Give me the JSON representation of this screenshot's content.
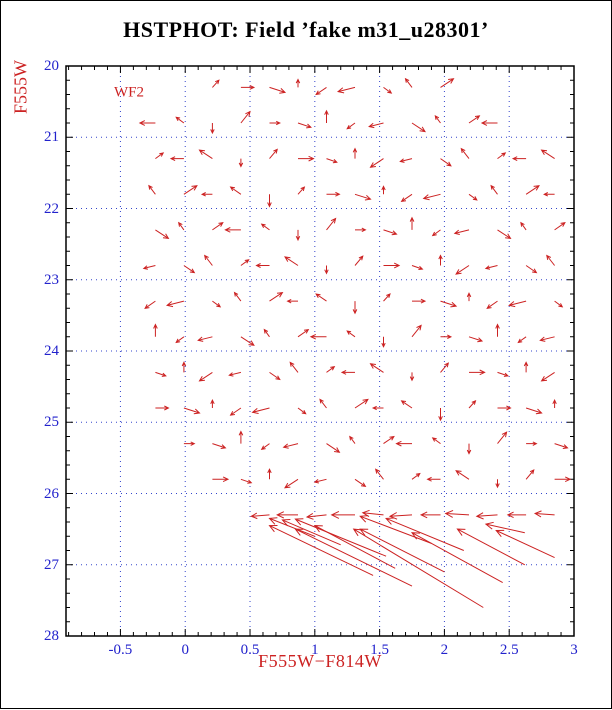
{
  "colors": {
    "red": "#cc2222",
    "blue": "#2222cc",
    "grid_blue": "#3344cc",
    "frame": "#000000"
  },
  "chart_data": {
    "type": "scatter",
    "subtype": "quiver-vector-field",
    "title": "HSTPHOT: Field ’fake m31_u28301’",
    "xlabel": "F555W−F814W",
    "ylabel": "F555W",
    "annotation": "WF2",
    "annotation_pos": {
      "x": -0.55,
      "y": 20.38
    },
    "xlim": [
      -0.92,
      3.0
    ],
    "ylim": [
      20,
      28
    ],
    "y_axis_inverted": true,
    "grid": "dotted at major ticks",
    "x_ticks": [
      -0.5,
      0,
      0.5,
      1,
      1.5,
      2,
      2.5,
      3
    ],
    "x_tick_labels": [
      "-0.5",
      "0",
      "0.5",
      "1",
      "1.5",
      "2",
      "2.5",
      "3"
    ],
    "y_ticks": [
      20,
      21,
      22,
      23,
      24,
      25,
      26,
      27,
      28
    ],
    "y_tick_labels": [
      "20",
      "21",
      "22",
      "23",
      "24",
      "25",
      "26",
      "27",
      "28"
    ],
    "x_minor_step": 0.1,
    "y_minor_step": 0.2,
    "vectors_format": [
      "x_color",
      "y_mag",
      "dx_color",
      "dy_mag"
    ],
    "vectors": [
      [
        0.21,
        20.3,
        0.05,
        -0.1
      ],
      [
        0.43,
        20.3,
        0.1,
        0
      ],
      [
        0.65,
        20.3,
        0.12,
        0.07
      ],
      [
        0.87,
        20.3,
        0,
        -0.11
      ],
      [
        1.09,
        20.3,
        -0.08,
        0.1
      ],
      [
        1.31,
        20.3,
        -0.13,
        0.06
      ],
      [
        1.53,
        20.3,
        0.06,
        0.08
      ],
      [
        1.75,
        20.3,
        -0.05,
        -0.12
      ],
      [
        1.97,
        20.3,
        0.1,
        -0.12
      ],
      [
        -0.23,
        20.8,
        -0.12,
        0
      ],
      [
        -0.01,
        20.8,
        -0.06,
        -0.08
      ],
      [
        0.21,
        20.8,
        0,
        0.14
      ],
      [
        0.43,
        20.8,
        0.07,
        -0.16
      ],
      [
        0.65,
        20.8,
        0.08,
        0
      ],
      [
        0.87,
        20.8,
        0.1,
        0.06
      ],
      [
        1.09,
        20.8,
        0,
        -0.17
      ],
      [
        1.31,
        20.8,
        -0.06,
        0.08
      ],
      [
        1.53,
        20.8,
        -0.11,
        0.05
      ],
      [
        1.75,
        20.8,
        0.1,
        0.12
      ],
      [
        1.97,
        20.8,
        -0.04,
        -0.1
      ],
      [
        2.19,
        20.8,
        0.08,
        -0.1
      ],
      [
        2.41,
        20.8,
        -0.12,
        0
      ],
      [
        -0.23,
        21.3,
        0.06,
        -0.08
      ],
      [
        -0.01,
        21.3,
        -0.1,
        0
      ],
      [
        0.21,
        21.3,
        -0.1,
        -0.12
      ],
      [
        0.43,
        21.3,
        0,
        0.11
      ],
      [
        0.65,
        21.3,
        0.06,
        -0.13
      ],
      [
        0.87,
        21.3,
        0.12,
        0
      ],
      [
        1.09,
        21.3,
        0.08,
        0.05
      ],
      [
        1.31,
        21.3,
        0,
        -0.14
      ],
      [
        1.53,
        21.3,
        -0.1,
        0.12
      ],
      [
        1.75,
        21.3,
        -0.09,
        0.04
      ],
      [
        1.97,
        21.3,
        0.08,
        0.1
      ],
      [
        2.19,
        21.3,
        -0.06,
        -0.14
      ],
      [
        2.41,
        21.3,
        0.06,
        -0.08
      ],
      [
        2.63,
        21.3,
        -0.1,
        0
      ],
      [
        2.85,
        21.3,
        -0.1,
        -0.12
      ],
      [
        -0.23,
        21.8,
        -0.05,
        -0.12
      ],
      [
        -0.01,
        21.8,
        0.1,
        -0.12
      ],
      [
        0.21,
        21.8,
        -0.08,
        0
      ],
      [
        0.43,
        21.8,
        -0.08,
        -0.1
      ],
      [
        0.65,
        21.8,
        0,
        0.17
      ],
      [
        0.87,
        21.8,
        0.05,
        -0.1
      ],
      [
        1.09,
        21.8,
        0.1,
        0
      ],
      [
        1.31,
        21.8,
        0.12,
        0.07
      ],
      [
        1.53,
        21.8,
        0,
        -0.11
      ],
      [
        1.75,
        21.8,
        -0.08,
        0.1
      ],
      [
        1.97,
        21.8,
        -0.13,
        0.06
      ],
      [
        2.19,
        21.8,
        0.06,
        0.08
      ],
      [
        2.41,
        21.8,
        -0.05,
        -0.12
      ],
      [
        2.63,
        21.8,
        0.1,
        -0.12
      ],
      [
        2.85,
        21.8,
        -0.08,
        0
      ],
      [
        -0.23,
        22.3,
        0.1,
        0.12
      ],
      [
        -0.01,
        22.3,
        -0.04,
        -0.1
      ],
      [
        0.21,
        22.3,
        0.08,
        -0.1
      ],
      [
        0.43,
        22.3,
        -0.12,
        0
      ],
      [
        0.65,
        22.3,
        -0.06,
        -0.08
      ],
      [
        0.87,
        22.3,
        0,
        0.14
      ],
      [
        1.09,
        22.3,
        0.07,
        -0.16
      ],
      [
        1.31,
        22.3,
        0.08,
        0
      ],
      [
        1.53,
        22.3,
        0.1,
        0.06
      ],
      [
        1.75,
        22.3,
        0,
        -0.17
      ],
      [
        1.97,
        22.3,
        -0.06,
        0.08
      ],
      [
        2.19,
        22.3,
        -0.11,
        0.05
      ],
      [
        2.41,
        22.3,
        0.1,
        0.12
      ],
      [
        2.63,
        22.3,
        -0.04,
        -0.1
      ],
      [
        2.85,
        22.3,
        0.08,
        -0.1
      ],
      [
        -0.23,
        22.8,
        -0.09,
        0.04
      ],
      [
        -0.01,
        22.8,
        0.08,
        0.1
      ],
      [
        0.21,
        22.8,
        -0.06,
        -0.14
      ],
      [
        0.43,
        22.8,
        0.06,
        -0.08
      ],
      [
        0.65,
        22.8,
        -0.1,
        0
      ],
      [
        0.87,
        22.8,
        -0.1,
        -0.12
      ],
      [
        1.09,
        22.8,
        0,
        0.11
      ],
      [
        1.31,
        22.8,
        0.06,
        -0.13
      ],
      [
        1.53,
        22.8,
        0.12,
        0
      ],
      [
        1.75,
        22.8,
        0.08,
        0.05
      ],
      [
        1.97,
        22.8,
        0,
        -0.14
      ],
      [
        2.19,
        22.8,
        -0.1,
        0.12
      ],
      [
        2.41,
        22.8,
        -0.09,
        0.04
      ],
      [
        2.63,
        22.8,
        0.08,
        0.1
      ],
      [
        2.85,
        22.8,
        -0.06,
        -0.14
      ],
      [
        -0.23,
        23.3,
        -0.08,
        0.1
      ],
      [
        -0.01,
        23.3,
        -0.13,
        0.06
      ],
      [
        0.21,
        23.3,
        0.06,
        0.08
      ],
      [
        0.43,
        23.3,
        -0.05,
        -0.12
      ],
      [
        0.65,
        23.3,
        0.1,
        -0.12
      ],
      [
        0.87,
        23.3,
        -0.08,
        0
      ],
      [
        1.09,
        23.3,
        -0.08,
        -0.1
      ],
      [
        1.31,
        23.3,
        0,
        0.17
      ],
      [
        1.53,
        23.3,
        0.05,
        -0.1
      ],
      [
        1.75,
        23.3,
        0.1,
        0
      ],
      [
        1.97,
        23.3,
        0.12,
        0.07
      ],
      [
        2.19,
        23.3,
        0,
        -0.11
      ],
      [
        2.41,
        23.3,
        -0.08,
        0.1
      ],
      [
        2.63,
        23.3,
        -0.13,
        0.06
      ],
      [
        2.85,
        23.3,
        0.06,
        0.08
      ],
      [
        -0.23,
        23.8,
        0,
        -0.17
      ],
      [
        -0.01,
        23.8,
        -0.06,
        0.08
      ],
      [
        0.21,
        23.8,
        -0.11,
        0.05
      ],
      [
        0.43,
        23.8,
        0.1,
        0.12
      ],
      [
        0.65,
        23.8,
        -0.04,
        -0.1
      ],
      [
        0.87,
        23.8,
        0.08,
        -0.1
      ],
      [
        1.09,
        23.8,
        -0.12,
        0
      ],
      [
        1.31,
        23.8,
        -0.06,
        -0.08
      ],
      [
        1.53,
        23.8,
        0,
        0.14
      ],
      [
        1.75,
        23.8,
        0.07,
        -0.16
      ],
      [
        1.97,
        23.8,
        0.08,
        0
      ],
      [
        2.19,
        23.8,
        0.1,
        0.06
      ],
      [
        2.41,
        23.8,
        0,
        -0.17
      ],
      [
        2.63,
        23.8,
        -0.06,
        0.08
      ],
      [
        2.85,
        23.8,
        -0.11,
        0.05
      ],
      [
        -0.23,
        24.3,
        0.08,
        0.05
      ],
      [
        -0.01,
        24.3,
        0,
        -0.14
      ],
      [
        0.21,
        24.3,
        -0.1,
        0.12
      ],
      [
        0.43,
        24.3,
        -0.09,
        0.04
      ],
      [
        0.65,
        24.3,
        0.08,
        0.1
      ],
      [
        0.87,
        24.3,
        -0.06,
        -0.14
      ],
      [
        1.09,
        24.3,
        0.06,
        -0.08
      ],
      [
        1.31,
        24.3,
        -0.1,
        0
      ],
      [
        1.53,
        24.3,
        -0.1,
        -0.12
      ],
      [
        1.75,
        24.3,
        0,
        0.11
      ],
      [
        1.97,
        24.3,
        0.06,
        -0.13
      ],
      [
        2.19,
        24.3,
        0.12,
        0
      ],
      [
        2.41,
        24.3,
        0.08,
        0.05
      ],
      [
        2.63,
        24.3,
        0,
        -0.14
      ],
      [
        2.85,
        24.3,
        -0.1,
        0.12
      ],
      [
        -0.23,
        24.8,
        0.1,
        0
      ],
      [
        -0.01,
        24.8,
        0.12,
        0.07
      ],
      [
        0.21,
        24.8,
        0,
        -0.11
      ],
      [
        0.43,
        24.8,
        -0.08,
        0.1
      ],
      [
        0.65,
        24.8,
        -0.13,
        0.06
      ],
      [
        0.87,
        24.8,
        0.06,
        0.08
      ],
      [
        1.09,
        24.8,
        -0.05,
        -0.12
      ],
      [
        1.31,
        24.8,
        0.1,
        -0.12
      ],
      [
        1.53,
        24.8,
        -0.08,
        0
      ],
      [
        1.75,
        24.8,
        -0.08,
        -0.1
      ],
      [
        1.97,
        24.8,
        0,
        0.17
      ],
      [
        2.19,
        24.8,
        0.05,
        -0.1
      ],
      [
        2.41,
        24.8,
        0.1,
        0
      ],
      [
        2.63,
        24.8,
        0.12,
        0.07
      ],
      [
        2.85,
        24.8,
        0,
        -0.11
      ],
      [
        -0.01,
        25.3,
        0.08,
        0
      ],
      [
        0.21,
        25.3,
        0.1,
        0.06
      ],
      [
        0.43,
        25.3,
        0,
        -0.17
      ],
      [
        0.65,
        25.3,
        -0.06,
        0.08
      ],
      [
        0.87,
        25.3,
        -0.11,
        0.05
      ],
      [
        1.09,
        25.3,
        0.1,
        0.12
      ],
      [
        1.31,
        25.3,
        -0.04,
        -0.1
      ],
      [
        1.53,
        25.3,
        0.08,
        -0.1
      ],
      [
        1.75,
        25.3,
        -0.12,
        0
      ],
      [
        1.97,
        25.3,
        -0.06,
        -0.08
      ],
      [
        2.19,
        25.3,
        0,
        0.14
      ],
      [
        2.41,
        25.3,
        0.07,
        -0.16
      ],
      [
        2.63,
        25.3,
        0.08,
        0
      ],
      [
        2.85,
        25.3,
        0.1,
        0.06
      ],
      [
        0.21,
        25.8,
        0.12,
        0
      ],
      [
        0.43,
        25.8,
        0.08,
        0.05
      ],
      [
        0.65,
        25.8,
        0,
        -0.14
      ],
      [
        0.87,
        25.8,
        -0.1,
        0.12
      ],
      [
        1.09,
        25.8,
        -0.09,
        0.04
      ],
      [
        1.31,
        25.8,
        0.08,
        0.1
      ],
      [
        1.53,
        25.8,
        -0.06,
        -0.14
      ],
      [
        1.75,
        25.8,
        0.06,
        -0.08
      ],
      [
        1.97,
        25.8,
        -0.1,
        0
      ],
      [
        2.19,
        25.8,
        -0.1,
        -0.12
      ],
      [
        2.41,
        25.8,
        0,
        0.11
      ],
      [
        2.63,
        25.8,
        0.06,
        -0.13
      ],
      [
        2.85,
        25.8,
        0.12,
        0
      ],
      [
        0.65,
        26.3,
        -0.14,
        0.02
      ],
      [
        0.87,
        26.3,
        -0.16,
        0
      ],
      [
        1.09,
        26.3,
        -0.15,
        0.03
      ],
      [
        1.31,
        26.3,
        -0.18,
        0
      ],
      [
        1.53,
        26.3,
        -0.16,
        -0.03
      ],
      [
        1.75,
        26.3,
        -0.17,
        0.02
      ],
      [
        1.97,
        26.3,
        -0.15,
        0
      ],
      [
        2.19,
        26.3,
        -0.18,
        -0.02
      ],
      [
        2.41,
        26.3,
        -0.16,
        0.02
      ],
      [
        2.63,
        26.3,
        -0.14,
        0
      ],
      [
        2.85,
        26.3,
        -0.15,
        -0.02
      ],
      [
        1.45,
        27.15,
        -0.8,
        -0.7
      ],
      [
        1.75,
        27.3,
        -0.9,
        -0.8
      ],
      [
        1.62,
        27.05,
        -0.62,
        -0.6
      ],
      [
        2.0,
        27.1,
        -0.65,
        -0.6
      ],
      [
        2.3,
        27.6,
        -1.0,
        -1.1
      ],
      [
        2.45,
        27.25,
        -0.7,
        -0.7
      ],
      [
        2.62,
        27.0,
        -0.52,
        -0.5
      ],
      [
        2.85,
        26.9,
        -0.45,
        -0.38
      ],
      [
        2.15,
        26.8,
        -0.6,
        -0.45
      ],
      [
        1.9,
        26.7,
        -0.55,
        -0.38
      ],
      [
        1.2,
        26.72,
        -0.45,
        -0.35
      ],
      [
        1.0,
        26.6,
        -0.35,
        -0.25
      ],
      [
        2.62,
        26.55,
        -0.3,
        -0.12
      ],
      [
        1.55,
        26.88,
        -0.7,
        -0.52
      ]
    ]
  }
}
